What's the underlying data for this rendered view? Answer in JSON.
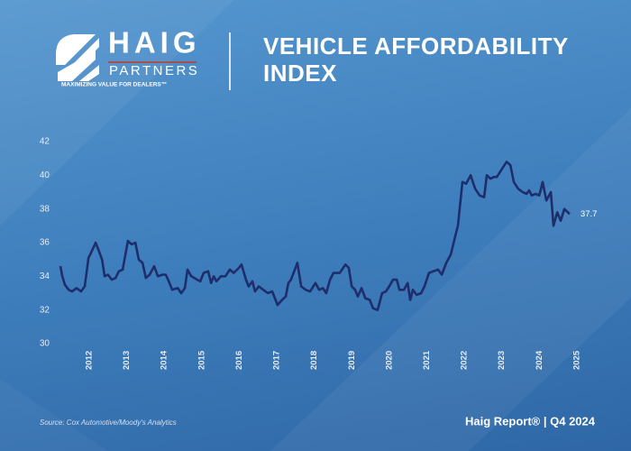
{
  "header": {
    "logo_name": "HAIG",
    "logo_sub": "PARTNERS",
    "tagline": "MAXIMIZING VALUE FOR DEALERS™"
  },
  "chart_data": {
    "type": "line",
    "title": "VEHICLE AFFORDABILITY INDEX",
    "x": [
      2011.23,
      2011.28,
      2011.35,
      2011.45,
      2011.54,
      2011.66,
      2011.78,
      2011.88,
      2011.98,
      2012.07,
      2012.17,
      2012.24,
      2012.34,
      2012.41,
      2012.5,
      2012.6,
      2012.7,
      2012.79,
      2012.89,
      2013.03,
      2013.13,
      2013.23,
      2013.32,
      2013.42,
      2013.51,
      2013.61,
      2013.73,
      2013.83,
      2013.95,
      2014.04,
      2014.14,
      2014.21,
      2014.36,
      2014.45,
      2014.55,
      2014.62,
      2014.72,
      2014.88,
      2014.96,
      2015.05,
      2015.17,
      2015.25,
      2015.32,
      2015.39,
      2015.51,
      2015.63,
      2015.75,
      2015.85,
      2015.99,
      2016.06,
      2016.18,
      2016.25,
      2016.35,
      2016.42,
      2016.52,
      2016.64,
      2016.76,
      2016.88,
      2017.02,
      2017.14,
      2017.24,
      2017.31,
      2017.38,
      2017.55,
      2017.65,
      2017.77,
      2017.89,
      2018.03,
      2018.13,
      2018.23,
      2018.32,
      2018.42,
      2018.51,
      2018.68,
      2018.83,
      2018.92,
      2019.0,
      2019.09,
      2019.16,
      2019.26,
      2019.36,
      2019.48,
      2019.57,
      2019.69,
      2019.81,
      2019.91,
      2020.0,
      2020.1,
      2020.2,
      2020.27,
      2020.39,
      2020.49,
      2020.56,
      2020.63,
      2020.73,
      2020.85,
      2020.94,
      2021.06,
      2021.18,
      2021.3,
      2021.4,
      2021.52,
      2021.64,
      2021.76,
      2021.83,
      2021.95,
      2022.05,
      2022.17,
      2022.29,
      2022.41,
      2022.53,
      2022.6,
      2022.7,
      2022.79,
      2022.87,
      2023.01,
      2023.13,
      2023.23,
      2023.32,
      2023.44,
      2023.56,
      2023.66,
      2023.73,
      2023.8,
      2023.9,
      2024.0,
      2024.09,
      2024.19,
      2024.31,
      2024.38,
      2024.48,
      2024.57,
      2024.67,
      2024.81
    ],
    "values": [
      34.6,
      34.0,
      33.5,
      33.2,
      33.1,
      33.3,
      33.1,
      33.4,
      35.1,
      35.5,
      36.0,
      35.6,
      35.0,
      34.0,
      34.1,
      33.8,
      33.9,
      34.3,
      34.4,
      36.1,
      35.9,
      36.0,
      35.0,
      34.8,
      33.9,
      34.1,
      34.6,
      34.0,
      34.1,
      34.1,
      33.6,
      33.2,
      33.3,
      33.0,
      33.3,
      34.4,
      34.0,
      33.8,
      33.7,
      34.2,
      34.3,
      33.6,
      34.0,
      33.7,
      34.0,
      34.0,
      34.4,
      34.2,
      34.5,
      34.7,
      33.8,
      33.4,
      33.7,
      33.1,
      33.4,
      33.2,
      33.0,
      33.1,
      32.3,
      32.6,
      32.8,
      33.6,
      33.8,
      34.8,
      33.4,
      33.2,
      33.1,
      33.6,
      33.2,
      33.3,
      33.0,
      33.8,
      34.2,
      34.2,
      34.7,
      34.5,
      33.4,
      33.2,
      32.8,
      33.3,
      32.7,
      32.6,
      32.1,
      32.0,
      33.0,
      33.1,
      33.4,
      33.8,
      33.8,
      33.2,
      33.2,
      33.6,
      32.6,
      33.2,
      32.9,
      33.0,
      33.4,
      34.2,
      34.3,
      34.4,
      34.1,
      34.8,
      35.3,
      36.4,
      37.0,
      39.6,
      39.5,
      40.0,
      39.2,
      38.8,
      38.7,
      40.0,
      39.8,
      39.9,
      39.9,
      40.4,
      40.8,
      40.6,
      39.6,
      39.2,
      39.0,
      38.9,
      39.1,
      38.8,
      38.9,
      38.8,
      39.6,
      38.5,
      39.0,
      37.0,
      37.8,
      37.3,
      38.0,
      37.7
    ],
    "color": "#1e2d6b",
    "xlim": [
      2011.23,
      2025.1
    ],
    "xticks": [
      2012,
      2013,
      2014,
      2015,
      2016,
      2017,
      2018,
      2019,
      2020,
      2021,
      2022,
      2023,
      2024,
      2025
    ],
    "ylim": [
      30,
      42
    ],
    "yticks": [
      30,
      32,
      34,
      36,
      38,
      40,
      42
    ],
    "grid": false,
    "annotations": [
      {
        "text": "37.7",
        "x": 2024.81,
        "y": 37.7
      }
    ],
    "source": "Source: Cox Automotive/Moody's Analytics"
  },
  "footer": {
    "text": "Haig Report® | Q4 2024"
  }
}
